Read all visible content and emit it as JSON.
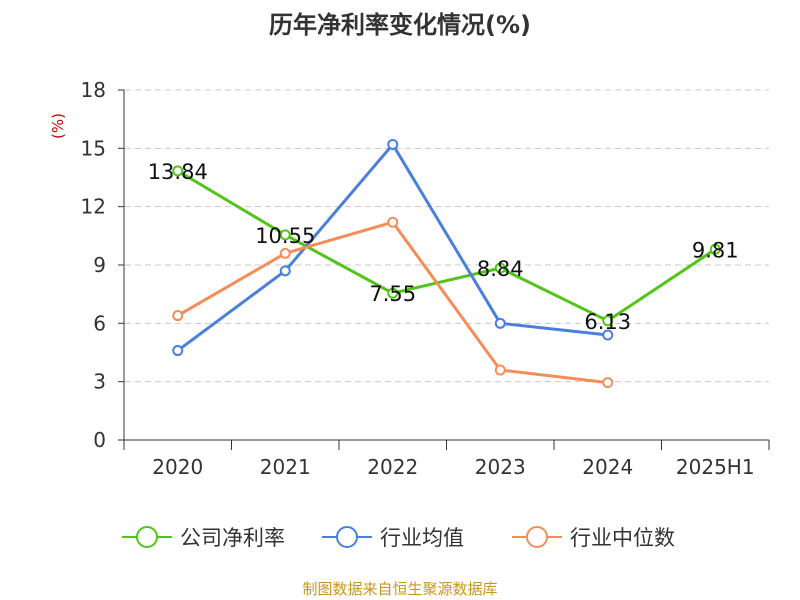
{
  "chart_data": {
    "type": "line",
    "title": "历年净利率变化情况(%)",
    "unit_label": "(%)",
    "categories": [
      "2020",
      "2021",
      "2022",
      "2023",
      "2024",
      "2025H1"
    ],
    "ylim": [
      0,
      18
    ],
    "yticks": [
      0,
      3,
      6,
      9,
      12,
      15,
      18
    ],
    "grid": true,
    "legend_position": "bottom",
    "series": [
      {
        "name": "公司净利率",
        "color": "#52c41a",
        "values": [
          13.84,
          10.55,
          7.55,
          8.84,
          6.13,
          9.81
        ],
        "labels": [
          "13.84",
          "10.55",
          "7.55",
          "8.84",
          "6.13",
          "9.81"
        ]
      },
      {
        "name": "行业均值",
        "color": "#4a7fdc",
        "values": [
          4.6,
          8.7,
          15.2,
          6.0,
          5.4,
          null
        ]
      },
      {
        "name": "行业中位数",
        "color": "#f48d58",
        "values": [
          6.4,
          9.6,
          11.2,
          3.6,
          2.95,
          null
        ]
      }
    ]
  },
  "footer": {
    "source": "制图数据来自恒生聚源数据库"
  }
}
